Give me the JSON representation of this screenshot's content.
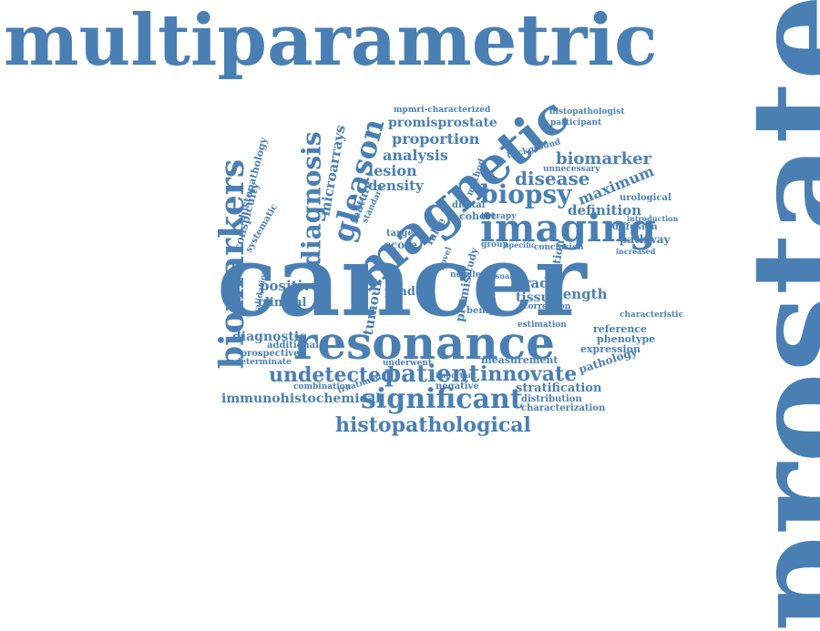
{
  "colors": {
    "word": "#4a7fb4",
    "background": "#ffffff"
  },
  "words": [
    "multiparametric",
    "prostate",
    "cancer",
    "resonance",
    "magnetic",
    "imaging",
    "biomarkers",
    "diagnosis",
    "gleason",
    "biopsy",
    "significant",
    "patient",
    "undetected",
    "innovate",
    "histopathological",
    "immunohistochemical",
    "disease",
    "biomarker",
    "maximum",
    "definition",
    "lesion",
    "density",
    "analysis",
    "proportion",
    "promisprostate",
    "mpmri-characterized",
    "histopathologist",
    "microarrays",
    "conspicuity",
    "histopathology",
    "systematic",
    "diagnostic",
    "positive",
    "clinical",
    "tumour",
    "grade",
    "tissue",
    "length",
    "pathway",
    "score",
    "target",
    "false",
    "cohort",
    "digital",
    "diffusion",
    "urological",
    "unnecessary",
    "stratification",
    "distribution",
    "characterization",
    "pathology",
    "expression",
    "phenotype",
    "reference",
    "characteristic",
    "measurement",
    "negative",
    "underwent",
    "combination",
    "treatment",
    "indeterminate",
    "prospective",
    "additional",
    "validation",
    "promis",
    "psad",
    "benign",
    "estimation",
    "conclusion",
    "correction",
    "needle",
    "evaluation",
    "method",
    "background",
    "participant",
    "introduction",
    "increased",
    "group",
    "specific",
    "feature",
    "standard",
    "visual",
    "important",
    "therapy",
    "study",
    "novel"
  ]
}
